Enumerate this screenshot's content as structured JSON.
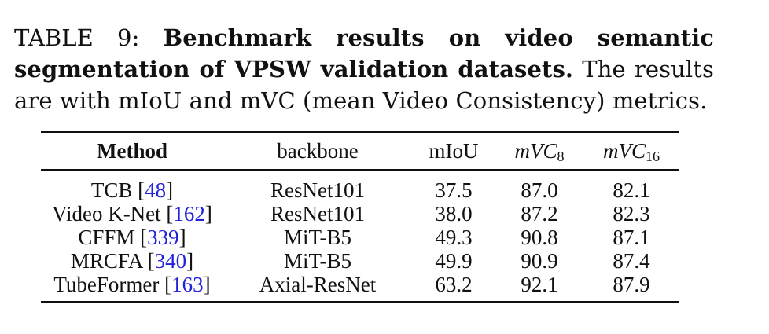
{
  "caption": {
    "label": "TABLE 9:",
    "bold": "Benchmark results on video semantic segmentation of VPSW validation datasets.",
    "rest": "The results are with mIoU and mVC (mean Video Consistency) metrics."
  },
  "table": {
    "headers": {
      "method": "Method",
      "backbone": "backbone",
      "miou": "mIoU",
      "mvc8_base": "mVC",
      "mvc8_sub": "8",
      "mvc16_base": "mVC",
      "mvc16_sub": "16"
    },
    "rows": [
      {
        "method": "TCB ",
        "ref": "48",
        "backbone": "ResNet101",
        "miou": "37.5",
        "mvc8": "87.0",
        "mvc16": "82.1"
      },
      {
        "method": "Video K-Net ",
        "ref": "162",
        "backbone": "ResNet101",
        "miou": "38.0",
        "mvc8": "87.2",
        "mvc16": "82.3"
      },
      {
        "method": "CFFM ",
        "ref": "339",
        "backbone": "MiT-B5",
        "miou": "49.3",
        "mvc8": "90.8",
        "mvc16": "87.1"
      },
      {
        "method": "MRCFA ",
        "ref": "340",
        "backbone": "MiT-B5",
        "miou": "49.9",
        "mvc8": "90.9",
        "mvc16": "87.4"
      },
      {
        "method": "TubeFormer ",
        "ref": "163",
        "backbone": "Axial-ResNet",
        "miou": "63.2",
        "mvc8": "92.1",
        "mvc16": "87.9"
      }
    ]
  }
}
